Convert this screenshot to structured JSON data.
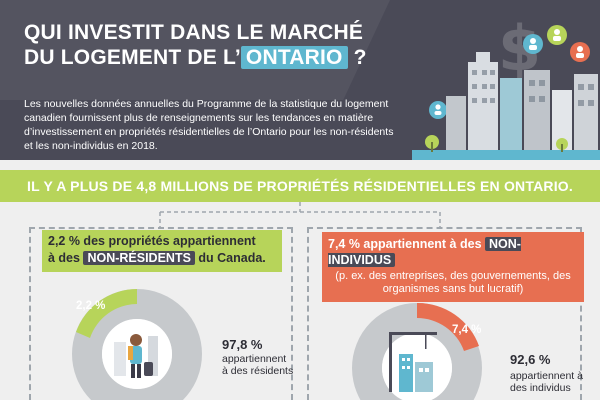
{
  "header": {
    "title_line1": "QUI INVESTIT DANS LE MARCHÉ",
    "title_line2_prefix": "DU LOGEMENT DE L’",
    "title_highlight": "ONTARIO",
    "title_suffix": "?",
    "intro": "Les nouvelles données annuelles du Programme de la statistique du logement canadien fournissent plus de renseignements sur les tendances en matière d’investissement en propriétés résidentielles de l’Ontario pour les non-résidents et les non-individus en 2018."
  },
  "banner": {
    "text": "IL Y A PLUS DE 4,8 MILLIONS DE PROPRIÉTÉS RÉSIDENTIELLES EN ONTARIO."
  },
  "left_card": {
    "label_line1": "2,2 % des propriétés appartiennent",
    "label_line2_prefix": "à des ",
    "label_tag": "NON-RÉSIDENTS",
    "label_line2_suffix": " du Canada.",
    "slice_pct": "2,2 %",
    "rest_pct": "97,8 %",
    "rest_desc_line1": "appartiennent",
    "rest_desc_line2": "à des résidents",
    "slice_value": 2.2,
    "rest_value": 97.8
  },
  "right_card": {
    "label_prefix": "7,4 % appartiennent à des ",
    "label_tag": "NON-INDIVIDUS",
    "label_sub": "(p. ex. des entreprises, des gouvernements, des organismes sans but lucratif)",
    "slice_pct": "7,4 %",
    "rest_pct": "92,6 %",
    "rest_desc_line1": "appartiennent à",
    "rest_desc_line2": "des individus",
    "slice_value": 7.4,
    "rest_value": 92.6
  },
  "colors": {
    "header_bg": "#4a4a57",
    "accent_teal": "#5fb7cf",
    "accent_green": "#b7d45a",
    "accent_orange": "#e76f51",
    "donut_grey": "#c6c9cc"
  },
  "icons": {
    "dollar": "dollar-sign-icon",
    "investors": "people-icon",
    "traveller": "traveller-icon",
    "construction": "construction-crane-icon"
  }
}
